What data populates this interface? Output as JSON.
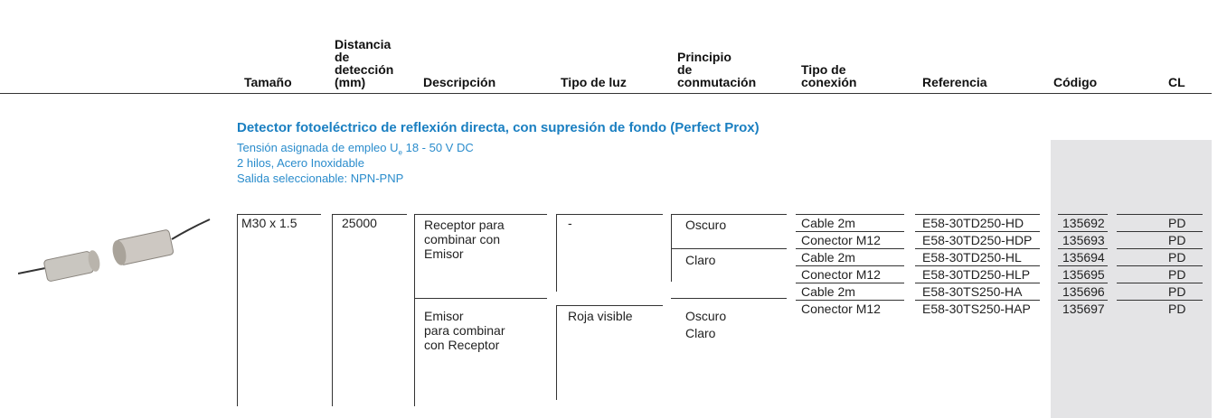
{
  "header": {
    "columns": [
      "Tamaño",
      "Distancia\nde\ndetección\n(mm)",
      "Descripción",
      "Tipo de luz",
      "Principio\nde\nconmutación",
      "Tipo de\nconexión",
      "Referencia",
      "Código",
      "CL"
    ]
  },
  "section": {
    "title": "Detector fotoeléctrico de reflexión directa, con supresión de fondo (Perfect Prox)",
    "notes": {
      "line1_prefix": "Tensión asignada de empleo U",
      "line1_subscript": "e",
      "line1_suffix": "18 - 50 V DC",
      "line2": "2 hilos, Acero Inoxidable",
      "line3": "Salida seleccionable: NPN-PNP"
    }
  },
  "table": {
    "size": "M30 x 1.5",
    "distance": "25000",
    "descriptions": [
      "Receptor para\ncombinar con\nEmisor",
      "Emisor\npara combinar\ncon Receptor"
    ],
    "lights": [
      "-",
      "Roja visible"
    ],
    "principles": [
      "Oscuro",
      "Claro",
      "Oscuro",
      "Claro"
    ],
    "rows": [
      [
        "Cable 2m",
        "E58-30TD250-HD",
        "135692",
        "PD"
      ],
      [
        "Conector M12",
        "E58-30TD250-HDP",
        "135693",
        "PD"
      ],
      [
        "Cable 2m",
        "E58-30TD250-HL",
        "135694",
        "PD"
      ],
      [
        "Conector M12",
        "E58-30TD250-HLP",
        "135695",
        "PD"
      ],
      [
        "Cable 2m",
        "E58-30TS250-HA",
        "135696",
        "PD"
      ],
      [
        "Conector M12",
        "E58-30TS250-HAP",
        "135697",
        "PD"
      ]
    ]
  }
}
